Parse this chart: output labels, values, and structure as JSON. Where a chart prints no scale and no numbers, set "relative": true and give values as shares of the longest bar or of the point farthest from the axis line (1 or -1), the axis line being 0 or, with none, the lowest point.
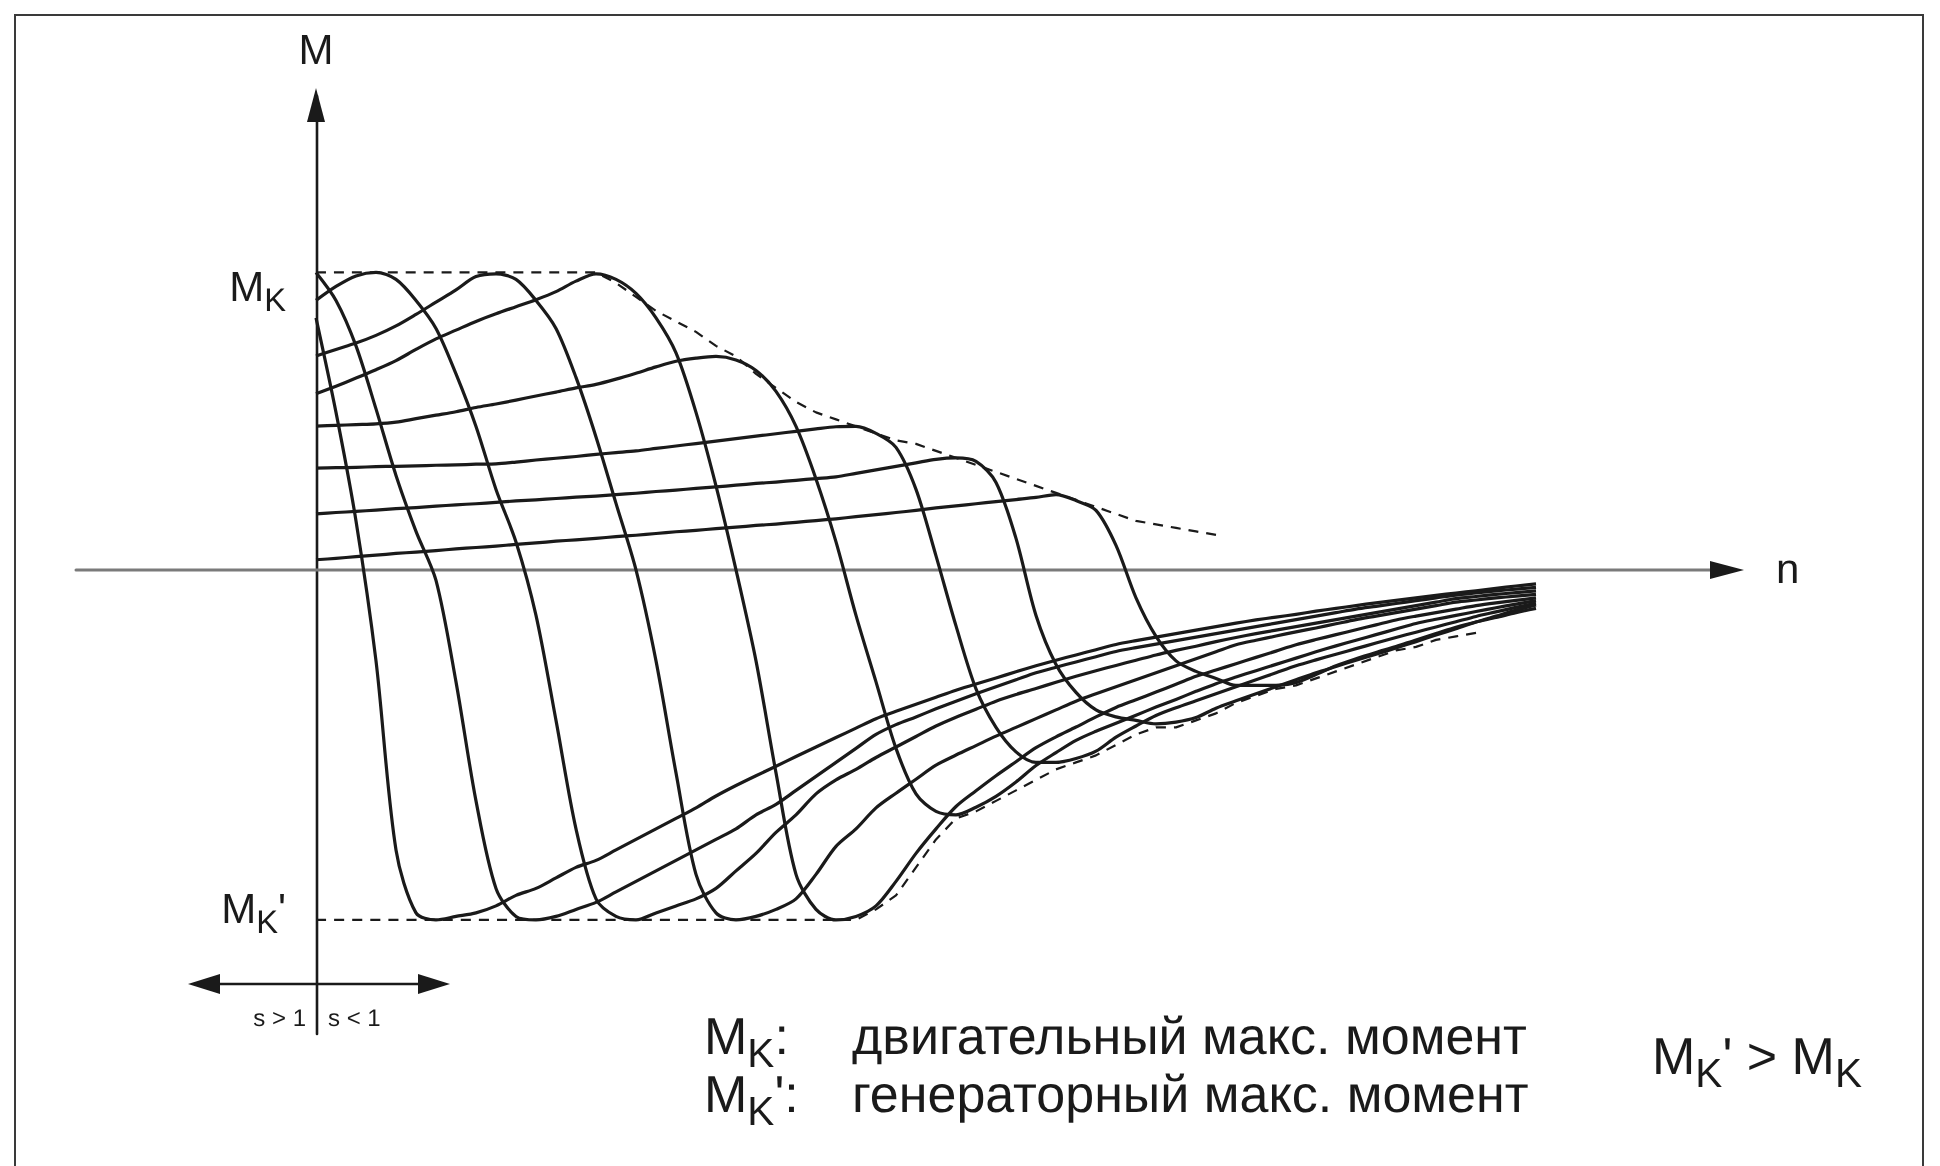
{
  "chart_data": {
    "type": "line",
    "relative": true,
    "xlabel": "n",
    "ylabel": "M",
    "categories": [
      null,
      null,
      null,
      null,
      null,
      null,
      null,
      null,
      null,
      null,
      null,
      null,
      null,
      null,
      null,
      null,
      null,
      null,
      null,
      null,
      null,
      null,
      null,
      null,
      null,
      null,
      null,
      null,
      null,
      null,
      null,
      null,
      null,
      null,
      null,
      null,
      null,
      null,
      null,
      null,
      null,
      null,
      null,
      null,
      null,
      null,
      null,
      null,
      null,
      null,
      null,
      null,
      null,
      null,
      null,
      null,
      null,
      null,
      null,
      null,
      null,
      null,
      null,
      null,
      null,
      null,
      null,
      null,
      null,
      null,
      null,
      null,
      null,
      null,
      null,
      null,
      null,
      null,
      null,
      null,
      null,
      null,
      null,
      null
    ],
    "series": [
      {
        "color": "#1a1a1a",
        "values": [
          null,
          null,
          null,
          null,
          null,
          null,
          null,
          null,
          null,
          null,
          null,
          null,
          0.72,
          0.45,
          0.14,
          -0.26,
          -0.8,
          -0.98,
          -1,
          -0.99,
          -0.98,
          -0.96,
          -0.93,
          -0.91,
          -0.88,
          -0.85,
          -0.83,
          -0.8,
          -0.77,
          -0.74,
          -0.71,
          -0.68,
          -0.646,
          -0.616,
          -0.588,
          -0.561,
          -0.533,
          -0.506,
          -0.479,
          -0.452,
          -0.425,
          -0.404,
          -0.384,
          -0.364,
          -0.344,
          -0.326,
          -0.309,
          -0.291,
          -0.274,
          -0.258,
          -0.243,
          -0.228,
          -0.213,
          -0.202,
          -0.192,
          -0.182,
          -0.172,
          -0.162,
          -0.152,
          -0.143,
          -0.135,
          -0.127,
          -0.118,
          -0.11,
          -0.102,
          -0.094,
          -0.087,
          -0.08,
          -0.073,
          -0.066,
          -0.06,
          -0.053,
          -0.046,
          -0.04,
          null,
          null,
          null,
          null,
          null,
          null,
          null,
          null,
          null,
          null
        ]
      },
      {
        "color": "#1a1a1a",
        "values": [
          null,
          null,
          null,
          null,
          null,
          null,
          null,
          null,
          null,
          null,
          null,
          null,
          0.85,
          0.77,
          0.64,
          0.46,
          0.27,
          0.11,
          -0.03,
          -0.32,
          -0.66,
          -0.91,
          -0.99,
          -1,
          -0.99,
          -0.97,
          -0.95,
          -0.92,
          -0.89,
          -0.86,
          -0.83,
          -0.8,
          -0.77,
          -0.74,
          -0.7,
          -0.67,
          -0.63,
          -0.59,
          -0.55,
          -0.51,
          -0.47,
          -0.442,
          -0.42,
          -0.397,
          -0.375,
          -0.354,
          -0.334,
          -0.314,
          -0.294,
          -0.278,
          -0.263,
          -0.248,
          -0.233,
          -0.222,
          -0.212,
          -0.202,
          -0.192,
          -0.182,
          -0.172,
          -0.162,
          -0.152,
          -0.142,
          -0.132,
          -0.122,
          -0.112,
          -0.104,
          -0.096,
          -0.088,
          -0.08,
          -0.072,
          -0.066,
          -0.06,
          -0.055,
          -0.05,
          null,
          null,
          null,
          null,
          null,
          null,
          null,
          null,
          null,
          null
        ]
      },
      {
        "color": "#1a1a1a",
        "values": [
          null,
          null,
          null,
          null,
          null,
          null,
          null,
          null,
          null,
          null,
          null,
          null,
          0.77,
          0.81,
          0.84,
          0.85,
          0.83,
          0.77,
          0.69,
          0.56,
          0.41,
          0.23,
          0.08,
          -0.13,
          -0.43,
          -0.74,
          -0.94,
          -0.99,
          -1,
          -0.98,
          -0.96,
          -0.94,
          -0.91,
          -0.86,
          -0.81,
          -0.75,
          -0.7,
          -0.64,
          -0.6,
          -0.57,
          -0.536,
          -0.506,
          -0.476,
          -0.446,
          -0.421,
          -0.398,
          -0.375,
          -0.356,
          -0.339,
          -0.321,
          -0.304,
          -0.288,
          -0.273,
          -0.258,
          -0.243,
          -0.23,
          -0.218,
          -0.205,
          -0.193,
          -0.182,
          -0.172,
          -0.162,
          -0.152,
          -0.142,
          -0.132,
          -0.122,
          -0.112,
          -0.102,
          -0.092,
          -0.082,
          -0.076,
          -0.07,
          -0.065,
          -0.06,
          null,
          null,
          null,
          null,
          null,
          null,
          null,
          null,
          null,
          null
        ]
      },
      {
        "color": "#1a1a1a",
        "values": [
          null,
          null,
          null,
          null,
          null,
          null,
          null,
          null,
          null,
          null,
          null,
          null,
          0.611,
          0.63,
          0.648,
          0.67,
          0.697,
          0.73,
          0.765,
          0.8,
          0.838,
          0.846,
          0.83,
          0.77,
          0.69,
          0.55,
          0.38,
          0.19,
          0,
          -0.26,
          -0.58,
          -0.87,
          -0.98,
          -1,
          -0.99,
          -0.97,
          -0.94,
          -0.87,
          -0.79,
          -0.74,
          -0.68,
          -0.638,
          -0.598,
          -0.558,
          -0.529,
          -0.502,
          -0.475,
          -0.45,
          -0.425,
          -0.4,
          -0.375,
          -0.354,
          -0.334,
          -0.314,
          -0.294,
          -0.274,
          -0.254,
          -0.234,
          -0.214,
          -0.201,
          -0.189,
          -0.177,
          -0.166,
          -0.154,
          -0.142,
          -0.132,
          -0.122,
          -0.112,
          -0.102,
          -0.092,
          -0.086,
          -0.08,
          -0.075,
          -0.07,
          null,
          null,
          null,
          null,
          null,
          null,
          null,
          null,
          null,
          null
        ]
      },
      {
        "color": "#1a1a1a",
        "values": [
          null,
          null,
          null,
          null,
          null,
          null,
          null,
          null,
          null,
          null,
          null,
          null,
          0.503,
          0.525,
          0.548,
          0.572,
          0.598,
          0.63,
          0.66,
          0.685,
          0.71,
          0.732,
          0.752,
          0.772,
          0.795,
          0.825,
          0.846,
          0.83,
          0.79,
          0.72,
          0.62,
          0.45,
          0.24,
          0,
          -0.26,
          -0.58,
          -0.87,
          -0.97,
          -1,
          -0.99,
          -0.96,
          -0.89,
          -0.81,
          -0.74,
          -0.676,
          -0.631,
          -0.588,
          -0.548,
          -0.508,
          -0.477,
          -0.449,
          -0.42,
          -0.393,
          -0.371,
          -0.349,
          -0.327,
          -0.304,
          -0.286,
          -0.268,
          -0.25,
          -0.232,
          -0.214,
          -0.199,
          -0.185,
          -0.171,
          -0.157,
          -0.143,
          -0.132,
          -0.122,
          -0.112,
          -0.102,
          -0.094,
          -0.087,
          -0.08,
          null,
          null,
          null,
          null,
          null,
          null,
          null,
          null,
          null,
          null
        ]
      },
      {
        "color": "#1a1a1a",
        "values": [
          null,
          null,
          null,
          null,
          null,
          null,
          null,
          null,
          null,
          null,
          null,
          null,
          0.411,
          0.413,
          0.415,
          0.417,
          0.422,
          0.432,
          0.442,
          0.452,
          0.464,
          0.474,
          0.485,
          0.497,
          0.508,
          0.52,
          0.53,
          0.545,
          0.562,
          0.58,
          0.596,
          0.605,
          0.61,
          0.6,
          0.57,
          0.51,
          0.41,
          0.26,
          0.08,
          -0.13,
          -0.32,
          -0.51,
          -0.64,
          -0.69,
          -0.7,
          -0.678,
          -0.647,
          -0.606,
          -0.559,
          -0.522,
          -0.487,
          -0.461,
          -0.438,
          -0.415,
          -0.392,
          -0.37,
          -0.347,
          -0.325,
          -0.306,
          -0.288,
          -0.27,
          -0.252,
          -0.234,
          -0.217,
          -0.201,
          -0.185,
          -0.169,
          -0.153,
          -0.141,
          -0.13,
          -0.119,
          -0.108,
          -0.098,
          -0.088,
          null,
          null,
          null,
          null,
          null,
          null,
          null,
          null,
          null,
          null
        ]
      },
      {
        "color": "#1a1a1a",
        "values": [
          null,
          null,
          null,
          null,
          null,
          null,
          null,
          null,
          null,
          null,
          null,
          null,
          0.291,
          0.292,
          0.293,
          0.295,
          0.296,
          0.297,
          0.299,
          0.3,
          0.302,
          0.303,
          0.308,
          0.314,
          0.319,
          0.324,
          0.33,
          0.335,
          0.34,
          0.347,
          0.354,
          0.361,
          0.368,
          0.375,
          0.382,
          0.389,
          0.396,
          0.403,
          0.409,
          0.41,
          0.39,
          0.35,
          0.23,
          0.04,
          -0.16,
          -0.34,
          -0.45,
          -0.52,
          -0.55,
          -0.55,
          -0.539,
          -0.518,
          -0.478,
          -0.446,
          -0.416,
          -0.394,
          -0.374,
          -0.354,
          -0.334,
          -0.314,
          -0.294,
          -0.274,
          -0.257,
          -0.241,
          -0.225,
          -0.209,
          -0.193,
          -0.178,
          -0.163,
          -0.148,
          -0.133,
          -0.12,
          -0.107,
          -0.095,
          null,
          null,
          null,
          null,
          null,
          null,
          null,
          null,
          null,
          null
        ]
      },
      {
        "color": "#1a1a1a",
        "values": [
          null,
          null,
          null,
          null,
          null,
          null,
          null,
          null,
          null,
          null,
          null,
          null,
          0.16,
          0.164,
          0.167,
          0.171,
          0.175,
          0.178,
          0.182,
          0.186,
          0.189,
          0.193,
          0.197,
          0.2,
          0.204,
          0.208,
          0.211,
          0.215,
          0.219,
          0.224,
          0.228,
          0.233,
          0.237,
          0.242,
          0.247,
          0.251,
          0.256,
          0.261,
          0.266,
          0.276,
          0.286,
          0.296,
          0.306,
          0.316,
          0.32,
          0.31,
          0.25,
          0.09,
          -0.13,
          -0.27,
          -0.35,
          -0.4,
          -0.42,
          -0.43,
          -0.44,
          -0.435,
          -0.422,
          -0.395,
          -0.374,
          -0.354,
          -0.334,
          -0.314,
          -0.294,
          -0.276,
          -0.258,
          -0.241,
          -0.223,
          -0.205,
          -0.186,
          -0.168,
          -0.149,
          -0.132,
          -0.115,
          -0.1,
          null,
          null,
          null,
          null,
          null,
          null,
          null,
          null,
          null,
          null
        ]
      },
      {
        "color": "#1a1a1a",
        "values": [
          null,
          null,
          null,
          null,
          null,
          null,
          null,
          null,
          null,
          null,
          null,
          null,
          0.029,
          0.033,
          0.038,
          0.042,
          0.047,
          0.051,
          0.055,
          0.06,
          0.064,
          0.068,
          0.073,
          0.077,
          0.082,
          0.086,
          0.09,
          0.095,
          0.099,
          0.104,
          0.109,
          0.113,
          0.118,
          0.122,
          0.127,
          0.131,
          0.136,
          0.141,
          0.146,
          0.152,
          0.158,
          0.164,
          0.17,
          0.177,
          0.183,
          0.189,
          0.195,
          0.201,
          0.207,
          0.215,
          0.198,
          0.17,
          0.07,
          -0.08,
          -0.19,
          -0.26,
          -0.29,
          -0.31,
          -0.33,
          -0.33,
          -0.33,
          -0.322,
          -0.299,
          -0.274,
          -0.254,
          -0.236,
          -0.219,
          -0.2,
          -0.182,
          -0.164,
          -0.149,
          -0.136,
          -0.122,
          -0.11,
          null,
          null,
          null,
          null,
          null,
          null,
          null,
          null,
          null,
          null
        ]
      },
      {
        "color": "#1a1a1a",
        "line_style": "dashed",
        "values": [
          null,
          null,
          null,
          null,
          null,
          null,
          null,
          null,
          null,
          null,
          null,
          null,
          0.85,
          0.85,
          0.85,
          0.85,
          0.85,
          0.85,
          0.85,
          0.85,
          0.85,
          0.85,
          0.85,
          0.85,
          0.85,
          0.85,
          0.85,
          0.82,
          0.78,
          0.74,
          0.71,
          0.68,
          0.64,
          0.61,
          0.56,
          0.52,
          0.48,
          0.45,
          0.43,
          0.41,
          0.39,
          0.37,
          0.36,
          0.34,
          0.32,
          0.3,
          0.28,
          0.26,
          0.24,
          0.22,
          0.2,
          0.18,
          0.16,
          0.14,
          0.13,
          0.12,
          0.11,
          0.1,
          null,
          null,
          null,
          null,
          null,
          null,
          null,
          null,
          null,
          null,
          null,
          null,
          null,
          null,
          null,
          null,
          null,
          null,
          null,
          null,
          null,
          null,
          null,
          null,
          null,
          null
        ]
      },
      {
        "color": "#1a1a1a",
        "line_style": "dashed",
        "values": [
          null,
          null,
          null,
          null,
          null,
          null,
          null,
          null,
          null,
          null,
          null,
          null,
          -1,
          -1,
          -1,
          -1,
          -1,
          -1,
          -1,
          -1,
          -1,
          -1,
          -1,
          -1,
          -1,
          -1,
          -1,
          -1,
          -1,
          -1,
          -1,
          -1,
          -1,
          -1,
          -1,
          -1,
          -1,
          -1,
          -1,
          -1,
          -0.97,
          -0.93,
          -0.85,
          -0.77,
          -0.71,
          -0.69,
          -0.66,
          -0.63,
          -0.6,
          -0.57,
          -0.55,
          -0.53,
          -0.5,
          -0.47,
          -0.45,
          -0.45,
          -0.43,
          -0.41,
          -0.38,
          -0.36,
          -0.34,
          -0.33,
          -0.31,
          -0.29,
          -0.27,
          -0.25,
          -0.23,
          -0.22,
          -0.2,
          -0.19,
          -0.18,
          null,
          null,
          null,
          null,
          null,
          null,
          null,
          null,
          null,
          null,
          null,
          null,
          null
        ]
      }
    ],
    "annotations": [
      "M$_{K}$",
      "M$_{K}$'",
      "s > 1",
      "s < 1",
      "M$_{K}$:",
      "двигательный макс. момент",
      "M$_{K}$':",
      "генераторный макс. момент",
      "M$_{K}$' > M$_{K}$"
    ]
  }
}
